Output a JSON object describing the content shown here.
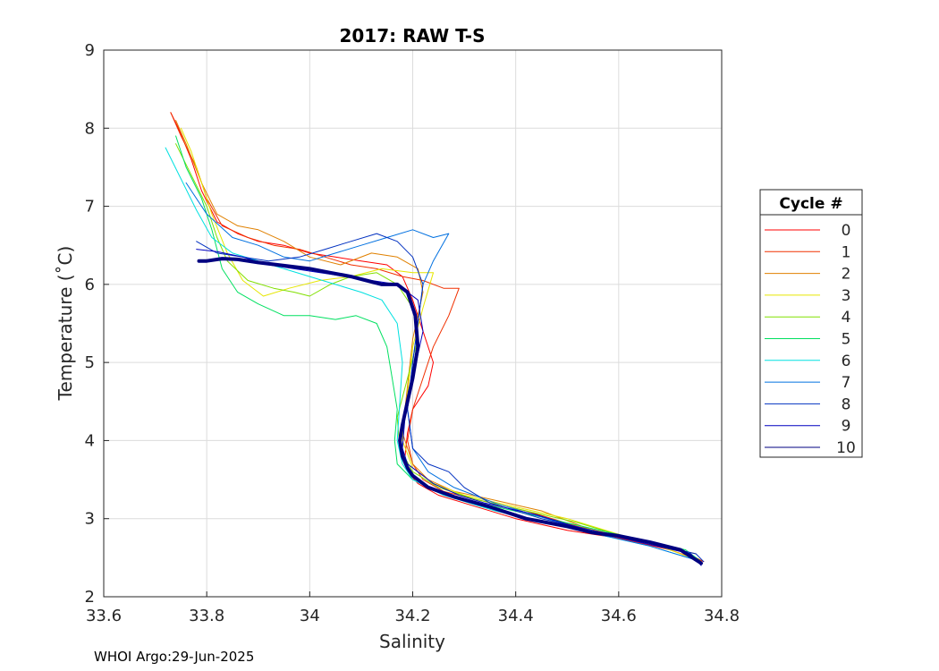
{
  "footer_text": "WHOI Argo:29-Jun-2025",
  "chart_data": {
    "type": "line",
    "title": "2017: RAW T-S",
    "xlabel": "Salinity",
    "ylabel": "Temperature (˚C)",
    "xlim": [
      33.6,
      34.8
    ],
    "ylim": [
      2,
      9
    ],
    "xticks": [
      33.6,
      33.8,
      34,
      34.2,
      34.4,
      34.6,
      34.8
    ],
    "yticks": [
      2,
      3,
      4,
      5,
      6,
      7,
      8,
      9
    ],
    "xtick_labels": [
      "33.6",
      "33.8",
      "34",
      "34.2",
      "34.4",
      "34.6",
      "34.8"
    ],
    "ytick_labels": [
      "2",
      "3",
      "4",
      "5",
      "6",
      "7",
      "8",
      "9"
    ],
    "grid": true,
    "legend": {
      "title": "Cycle #",
      "position": "right"
    },
    "series": [
      {
        "name": "0",
        "color": "#ff0000",
        "x": [
          33.73,
          33.745,
          33.77,
          33.79,
          33.82,
          33.86,
          33.9,
          33.95,
          34.0,
          34.05,
          34.1,
          34.15,
          34.18,
          34.2,
          34.22,
          34.24,
          34.23,
          34.2,
          34.19,
          34.185,
          34.19,
          34.21,
          34.25,
          34.3,
          34.4,
          34.5,
          34.6,
          34.7,
          34.765
        ],
        "y": [
          8.2,
          8.0,
          7.6,
          7.2,
          6.8,
          6.65,
          6.55,
          6.5,
          6.4,
          6.35,
          6.3,
          6.25,
          6.1,
          5.8,
          5.4,
          5.0,
          4.7,
          4.4,
          4.1,
          3.8,
          3.6,
          3.45,
          3.3,
          3.2,
          3.0,
          2.85,
          2.75,
          2.6,
          2.45
        ]
      },
      {
        "name": "1",
        "color": "#f03000",
        "x": [
          33.73,
          33.75,
          33.78,
          33.8,
          33.83,
          33.88,
          33.93,
          33.98,
          34.03,
          34.08,
          34.13,
          34.18,
          34.22,
          34.26,
          34.29,
          34.27,
          34.24,
          34.22,
          34.2,
          34.19,
          34.2,
          34.22,
          34.26,
          34.32,
          34.42,
          34.52,
          34.62,
          34.72,
          34.765
        ],
        "y": [
          8.2,
          7.9,
          7.5,
          7.1,
          6.75,
          6.6,
          6.5,
          6.45,
          6.35,
          6.25,
          6.2,
          6.1,
          6.05,
          5.95,
          5.95,
          5.6,
          5.2,
          4.8,
          4.4,
          4.0,
          3.7,
          3.5,
          3.35,
          3.25,
          3.1,
          2.9,
          2.75,
          2.6,
          2.45
        ]
      },
      {
        "name": "2",
        "color": "#e08000",
        "x": [
          33.74,
          33.76,
          33.79,
          33.82,
          33.86,
          33.9,
          33.95,
          34.0,
          34.06,
          34.12,
          34.17,
          34.21,
          34.22,
          34.2,
          34.19,
          34.18,
          34.2,
          34.23,
          34.28,
          34.35,
          34.45,
          34.55,
          34.65,
          34.75
        ],
        "y": [
          8.1,
          7.8,
          7.3,
          6.9,
          6.75,
          6.7,
          6.55,
          6.35,
          6.25,
          6.4,
          6.35,
          6.2,
          5.9,
          5.3,
          4.7,
          4.1,
          3.7,
          3.5,
          3.35,
          3.25,
          3.1,
          2.85,
          2.7,
          2.55
        ]
      },
      {
        "name": "3",
        "color": "#e6e600",
        "x": [
          33.75,
          33.77,
          33.79,
          33.81,
          33.84,
          33.87,
          33.91,
          33.96,
          34.02,
          34.08,
          34.14,
          34.2,
          34.24,
          34.22,
          34.2,
          34.19,
          34.18,
          34.2,
          34.24,
          34.3,
          34.4,
          34.5,
          34.6,
          34.7,
          34.76
        ],
        "y": [
          8.0,
          7.7,
          7.3,
          6.9,
          6.4,
          6.05,
          5.85,
          5.95,
          6.05,
          6.1,
          6.2,
          6.15,
          6.15,
          5.7,
          5.2,
          4.6,
          4.0,
          3.65,
          3.45,
          3.3,
          3.15,
          3.0,
          2.8,
          2.6,
          2.45
        ]
      },
      {
        "name": "4",
        "color": "#80e000",
        "x": [
          33.74,
          33.77,
          33.8,
          33.82,
          33.84,
          33.88,
          33.93,
          33.97,
          34.0,
          34.04,
          34.08,
          34.13,
          34.17,
          34.2,
          34.21,
          34.19,
          34.17,
          34.175,
          34.2,
          34.25,
          34.32,
          34.42,
          34.52,
          34.62,
          34.72,
          34.76
        ],
        "y": [
          7.8,
          7.4,
          7.0,
          6.6,
          6.3,
          6.05,
          5.95,
          5.9,
          5.85,
          6.0,
          6.1,
          6.15,
          6.0,
          5.7,
          5.3,
          4.8,
          4.3,
          3.9,
          3.6,
          3.4,
          3.25,
          3.1,
          2.95,
          2.75,
          2.6,
          2.45
        ]
      },
      {
        "name": "5",
        "color": "#00e060",
        "x": [
          33.74,
          33.76,
          33.79,
          33.81,
          33.83,
          33.86,
          33.9,
          33.95,
          34.0,
          34.05,
          34.09,
          34.13,
          34.15,
          34.16,
          34.17,
          34.165,
          34.17,
          34.2,
          34.25,
          34.33,
          34.43,
          34.53,
          34.63,
          34.73,
          34.76
        ],
        "y": [
          7.9,
          7.5,
          7.1,
          6.7,
          6.2,
          5.9,
          5.75,
          5.6,
          5.6,
          5.55,
          5.6,
          5.5,
          5.2,
          4.8,
          4.4,
          4.0,
          3.7,
          3.5,
          3.35,
          3.2,
          3.05,
          2.9,
          2.75,
          2.6,
          2.45
        ]
      },
      {
        "name": "6",
        "color": "#00e0e0",
        "x": [
          33.72,
          33.75,
          33.78,
          33.81,
          33.85,
          33.9,
          33.95,
          34.0,
          34.05,
          34.1,
          34.14,
          34.17,
          34.18,
          34.175,
          34.17,
          34.18,
          34.2,
          34.26,
          34.36,
          34.46,
          34.56,
          34.66,
          34.76
        ],
        "y": [
          7.75,
          7.35,
          6.95,
          6.6,
          6.4,
          6.3,
          6.2,
          6.1,
          6.0,
          5.9,
          5.8,
          5.5,
          5.0,
          4.5,
          4.0,
          3.7,
          3.5,
          3.3,
          3.1,
          2.95,
          2.8,
          2.65,
          2.45
        ]
      },
      {
        "name": "7",
        "color": "#0070e0",
        "x": [
          33.76,
          33.8,
          33.85,
          33.9,
          33.95,
          34.0,
          34.05,
          34.1,
          34.15,
          34.2,
          34.24,
          34.27,
          34.24,
          34.22,
          34.21,
          34.2,
          34.19,
          34.2,
          34.23,
          34.28,
          34.36,
          34.46,
          34.56,
          34.66,
          34.76
        ],
        "y": [
          7.3,
          6.9,
          6.6,
          6.5,
          6.35,
          6.3,
          6.4,
          6.5,
          6.6,
          6.7,
          6.6,
          6.65,
          6.3,
          6.0,
          5.5,
          5.0,
          4.4,
          3.9,
          3.6,
          3.4,
          3.2,
          3.0,
          2.8,
          2.65,
          2.45
        ]
      },
      {
        "name": "8",
        "color": "#0030c0",
        "x": [
          33.78,
          33.82,
          33.87,
          33.92,
          33.98,
          34.03,
          34.08,
          34.13,
          34.17,
          34.2,
          34.22,
          34.21,
          34.2,
          34.19,
          34.2,
          34.23,
          34.27,
          34.3,
          34.35,
          34.45,
          34.55,
          34.65,
          34.75,
          34.765
        ],
        "y": [
          6.55,
          6.4,
          6.35,
          6.3,
          6.35,
          6.45,
          6.55,
          6.65,
          6.55,
          6.35,
          6.0,
          5.5,
          5.0,
          4.4,
          3.9,
          3.7,
          3.6,
          3.4,
          3.2,
          3.0,
          2.85,
          2.7,
          2.55,
          2.45
        ]
      },
      {
        "name": "9",
        "color": "#0000c0",
        "x": [
          33.78,
          33.82,
          33.87,
          33.92,
          33.97,
          34.02,
          34.07,
          34.12,
          34.17,
          34.21,
          34.22,
          34.2,
          34.185,
          34.18,
          34.19,
          34.21,
          34.24,
          34.29,
          34.34,
          34.44,
          34.54,
          34.64,
          34.74,
          34.76
        ],
        "y": [
          6.45,
          6.42,
          6.35,
          6.25,
          6.2,
          6.15,
          6.1,
          6.05,
          6.0,
          5.8,
          5.4,
          4.8,
          4.3,
          3.9,
          3.7,
          3.6,
          3.45,
          3.3,
          3.2,
          3.05,
          2.85,
          2.7,
          2.55,
          2.4
        ]
      },
      {
        "name": "10",
        "color": "#000080",
        "emphasized": true,
        "x": [
          33.785,
          33.8,
          33.83,
          33.86,
          33.9,
          33.95,
          34.0,
          34.04,
          34.08,
          34.11,
          34.14,
          34.17,
          34.19,
          34.205,
          34.21,
          34.2,
          34.19,
          34.18,
          34.175,
          34.18,
          34.19,
          34.2,
          34.23,
          34.28,
          34.35,
          34.42,
          34.5,
          34.55,
          34.6,
          34.66,
          34.72,
          34.76
        ],
        "y": [
          6.3,
          6.3,
          6.33,
          6.32,
          6.28,
          6.24,
          6.2,
          6.15,
          6.1,
          6.05,
          6.0,
          6.0,
          5.9,
          5.6,
          5.2,
          4.8,
          4.5,
          4.2,
          4.0,
          3.8,
          3.65,
          3.55,
          3.4,
          3.28,
          3.15,
          3.0,
          2.9,
          2.82,
          2.78,
          2.7,
          2.6,
          2.43
        ]
      }
    ]
  }
}
